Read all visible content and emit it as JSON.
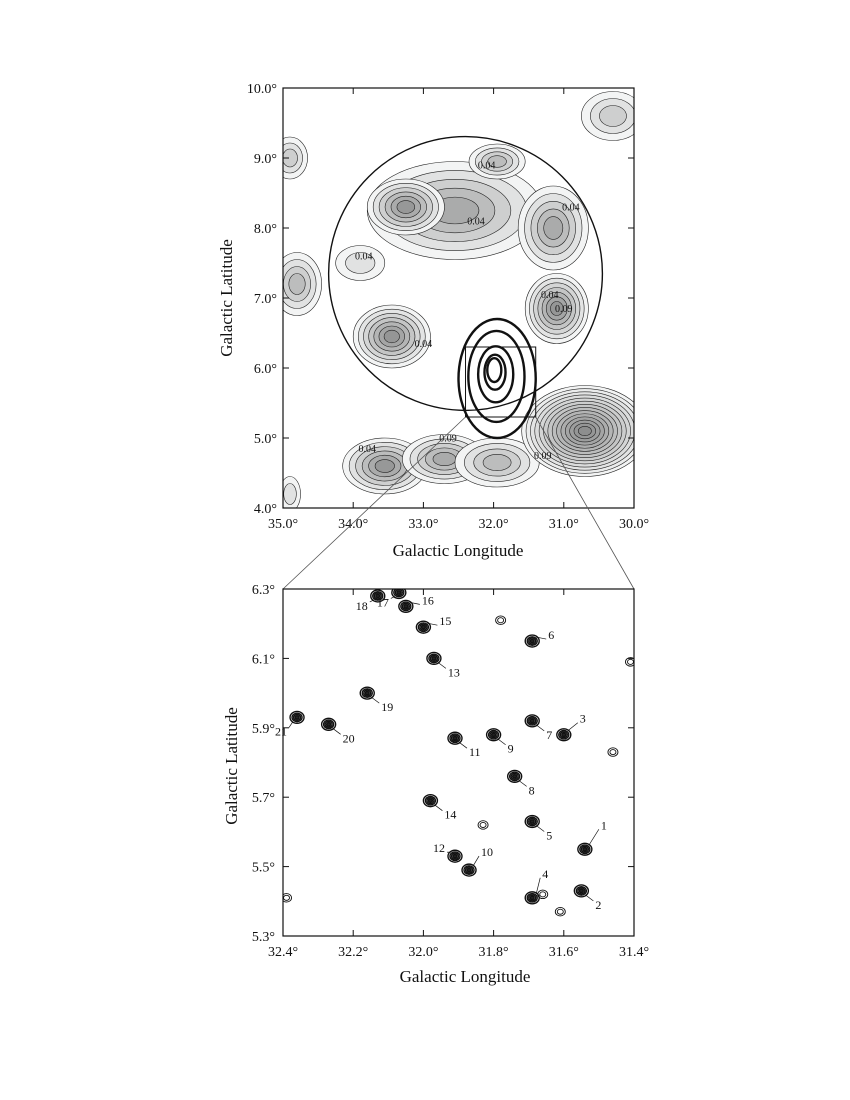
{
  "chart_data": [
    {
      "type": "contour-map",
      "xlabel": "Galactic Longitude",
      "ylabel": "Galactic Latitude",
      "xlim": [
        35.0,
        30.0
      ],
      "ylim": [
        4.0,
        10.0
      ],
      "x_ticks": [
        "35.0°",
        "34.0°",
        "33.0°",
        "32.0°",
        "31.0°",
        "30.0°"
      ],
      "y_ticks": [
        "4.0°",
        "5.0°",
        "6.0°",
        "7.0°",
        "8.0°",
        "9.0°",
        "10.0°"
      ],
      "x_tick_values": [
        35,
        34,
        33,
        32,
        31,
        30
      ],
      "y_tick_values": [
        4,
        5,
        6,
        7,
        8,
        9,
        10
      ],
      "contour_labels": [
        {
          "text": "0.04",
          "l": 32.1,
          "b": 8.85
        },
        {
          "text": "0.04",
          "l": 30.9,
          "b": 8.25
        },
        {
          "text": "0.04",
          "l": 32.25,
          "b": 8.05
        },
        {
          "text": "0.04",
          "l": 33.85,
          "b": 7.55
        },
        {
          "text": "0.04",
          "l": 31.2,
          "b": 7.0
        },
        {
          "text": "0.09",
          "l": 31.0,
          "b": 6.8
        },
        {
          "text": "0.04",
          "l": 33.0,
          "b": 6.3
        },
        {
          "text": "0.09",
          "l": 32.65,
          "b": 4.95
        },
        {
          "text": "0.04",
          "l": 33.8,
          "b": 4.8
        },
        {
          "text": "0.09",
          "l": 31.3,
          "b": 4.7
        }
      ],
      "circle": {
        "center_l": 32.4,
        "center_b": 7.35,
        "radius_deg": 1.95
      },
      "zoom_box": {
        "l_min": 31.4,
        "l_max": 32.4,
        "b_min": 5.3,
        "b_max": 6.3
      }
    },
    {
      "type": "scatter",
      "xlabel": "Galactic Longitude",
      "ylabel": "Galactic Latitude",
      "xlim": [
        32.4,
        31.4
      ],
      "ylim": [
        5.3,
        6.3
      ],
      "x_ticks": [
        "32.4°",
        "32.2°",
        "32.0°",
        "31.8°",
        "31.6°",
        "31.4°"
      ],
      "y_ticks": [
        "5.3°",
        "5.5°",
        "5.7°",
        "5.9°",
        "6.1°",
        "6.3°"
      ],
      "x_tick_values": [
        32.4,
        32.2,
        32.0,
        31.8,
        31.6,
        31.4
      ],
      "y_tick_values": [
        5.3,
        5.5,
        5.7,
        5.9,
        6.1,
        6.3
      ],
      "sources": [
        {
          "id": "1",
          "l": 31.54,
          "b": 5.55
        },
        {
          "id": "2",
          "l": 31.55,
          "b": 5.43
        },
        {
          "id": "3",
          "l": 31.6,
          "b": 5.88
        },
        {
          "id": "4",
          "l": 31.69,
          "b": 5.41
        },
        {
          "id": "5",
          "l": 31.69,
          "b": 5.63
        },
        {
          "id": "6",
          "l": 31.69,
          "b": 6.15
        },
        {
          "id": "7",
          "l": 31.69,
          "b": 5.92
        },
        {
          "id": "8",
          "l": 31.74,
          "b": 5.76
        },
        {
          "id": "9",
          "l": 31.8,
          "b": 5.88
        },
        {
          "id": "10",
          "l": 31.87,
          "b": 5.49
        },
        {
          "id": "11",
          "l": 31.91,
          "b": 5.87
        },
        {
          "id": "12",
          "l": 31.91,
          "b": 5.53
        },
        {
          "id": "13",
          "l": 31.97,
          "b": 6.1
        },
        {
          "id": "14",
          "l": 31.98,
          "b": 5.69
        },
        {
          "id": "15",
          "l": 32.0,
          "b": 6.19
        },
        {
          "id": "16",
          "l": 32.05,
          "b": 6.25
        },
        {
          "id": "17",
          "l": 32.07,
          "b": 6.29
        },
        {
          "id": "18",
          "l": 32.13,
          "b": 6.28
        },
        {
          "id": "19",
          "l": 32.16,
          "b": 6.0
        },
        {
          "id": "20",
          "l": 32.27,
          "b": 5.91
        },
        {
          "id": "21",
          "l": 32.36,
          "b": 5.93
        }
      ],
      "unlabeled_sources": [
        {
          "l": 31.78,
          "b": 6.21
        },
        {
          "l": 31.41,
          "b": 6.09
        },
        {
          "l": 31.46,
          "b": 5.83
        },
        {
          "l": 31.83,
          "b": 5.62
        },
        {
          "l": 31.66,
          "b": 5.42
        },
        {
          "l": 31.61,
          "b": 5.37
        },
        {
          "l": 32.39,
          "b": 5.41
        }
      ]
    }
  ]
}
